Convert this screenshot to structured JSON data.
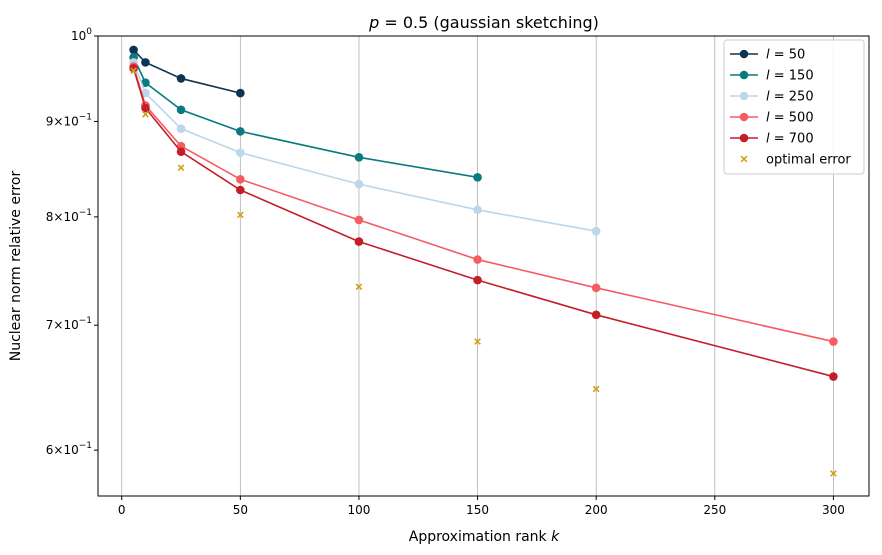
{
  "chart_data": {
    "type": "line",
    "title_prefix": "p",
    "title_value": "= 0.5",
    "title_suffix": "(gaussian sketching)",
    "xlabel_text": "Approximation rank",
    "xlabel_var": "k",
    "ylabel": "Nuclear norm relative error",
    "xlim": [
      -10,
      315
    ],
    "ylim": [
      0.567,
      1.0
    ],
    "yscale": "log",
    "grid": "vertical",
    "legend_position": "top-right",
    "x_ticks": [
      0,
      50,
      100,
      150,
      200,
      250,
      300
    ],
    "x_tick_labels": [
      "0",
      "50",
      "100",
      "150",
      "200",
      "250",
      "300"
    ],
    "y_ticks": [
      {
        "value": 1.0,
        "base": "10",
        "exp": "0"
      },
      {
        "value": 0.9,
        "base": "9×10",
        "exp": "−1"
      },
      {
        "value": 0.8,
        "base": "8×10",
        "exp": "−1"
      },
      {
        "value": 0.7,
        "base": "7×10",
        "exp": "−1"
      },
      {
        "value": 0.6,
        "base": "6×10",
        "exp": "−1"
      }
    ],
    "series": [
      {
        "name": "l = 50",
        "label_var": "l",
        "label_value": "= 50",
        "color": "#0d3553",
        "marker": "circle",
        "x": [
          5,
          10,
          25,
          50
        ],
        "y": [
          0.983,
          0.968,
          0.949,
          0.932
        ]
      },
      {
        "name": "l = 150",
        "label_var": "l",
        "label_value": "= 150",
        "color": "#097b80",
        "marker": "circle",
        "x": [
          5,
          10,
          25,
          50,
          100,
          150
        ],
        "y": [
          0.974,
          0.944,
          0.913,
          0.889,
          0.861,
          0.84
        ]
      },
      {
        "name": "l = 250",
        "label_var": "l",
        "label_value": "= 250",
        "color": "#bcd7ea",
        "marker": "circle",
        "x": [
          5,
          10,
          25,
          50,
          100,
          150,
          200
        ],
        "y": [
          0.968,
          0.932,
          0.892,
          0.866,
          0.833,
          0.807,
          0.786
        ]
      },
      {
        "name": "l = 500",
        "label_var": "l",
        "label_value": "= 500",
        "color": "#f45d61",
        "marker": "circle",
        "x": [
          5,
          10,
          25,
          50,
          100,
          150,
          200,
          300
        ],
        "y": [
          0.963,
          0.918,
          0.873,
          0.838,
          0.797,
          0.759,
          0.733,
          0.686
        ]
      },
      {
        "name": "l = 700",
        "label_var": "l",
        "label_value": "= 700",
        "color": "#c41e29",
        "marker": "circle",
        "x": [
          5,
          10,
          25,
          50,
          100,
          150,
          200,
          300
        ],
        "y": [
          0.961,
          0.915,
          0.867,
          0.827,
          0.776,
          0.74,
          0.709,
          0.657
        ]
      }
    ],
    "optimal": {
      "name": "optimal error",
      "color": "#d4a017",
      "marker": "x",
      "x": [
        5,
        10,
        25,
        50,
        100,
        150,
        200,
        300
      ],
      "y": [
        0.958,
        0.908,
        0.85,
        0.802,
        0.734,
        0.686,
        0.647,
        0.583
      ]
    }
  }
}
